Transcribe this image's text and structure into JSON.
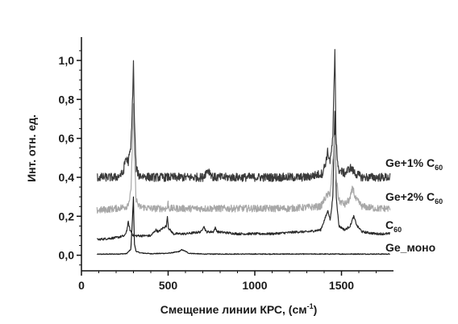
{
  "chart_data": {
    "type": "line",
    "title": "",
    "xlabel": "Смещение линии КРС, (см",
    "xlabel_sup": "-1",
    "xlabel_tail": ")",
    "ylabel": "Инт. отн. ед.",
    "xlim": [
      0,
      1800
    ],
    "ylim": [
      -0.08,
      1.12
    ],
    "x_ticks": [
      0,
      500,
      1000,
      1500
    ],
    "x_tick_labels": [
      "0",
      "500",
      "1000",
      "1500"
    ],
    "y_ticks": [
      0.0,
      0.2,
      0.4,
      0.6,
      0.8,
      1.0
    ],
    "y_tick_labels": [
      "0,0",
      "0,2",
      "0,4",
      "0,6",
      "0,8",
      "1,0"
    ],
    "grid": false,
    "legend": "inline-right",
    "series": [
      {
        "name": "Ge_моно",
        "label_main": "Ge_моно",
        "label_sub": "",
        "color": "#1a1a1a",
        "noise": 0.002,
        "x": [
          90,
          200,
          260,
          285,
          295,
          300,
          305,
          315,
          340,
          400,
          500,
          560,
          580,
          600,
          620,
          700,
          900,
          1200,
          1500,
          1780
        ],
        "y": [
          0.005,
          0.006,
          0.008,
          0.03,
          0.2,
          0.3,
          0.06,
          0.02,
          0.012,
          0.008,
          0.01,
          0.018,
          0.028,
          0.02,
          0.01,
          0.006,
          0.006,
          0.006,
          0.006,
          0.006
        ]
      },
      {
        "name": "C60",
        "label_main": "C",
        "label_sub": "60",
        "color": "#2a2a2a",
        "noise": 0.006,
        "x": [
          90,
          200,
          250,
          262,
          270,
          280,
          300,
          320,
          400,
          430,
          445,
          470,
          490,
          496,
          502,
          530,
          600,
          690,
          705,
          720,
          760,
          772,
          785,
          900,
          1100,
          1250,
          1300,
          1380,
          1410,
          1422,
          1435,
          1450,
          1462,
          1470,
          1485,
          1520,
          1550,
          1570,
          1590,
          1620,
          1700,
          1780
        ],
        "y": [
          0.08,
          0.09,
          0.1,
          0.13,
          0.17,
          0.13,
          0.1,
          0.1,
          0.1,
          0.13,
          0.12,
          0.14,
          0.15,
          0.2,
          0.14,
          0.11,
          0.11,
          0.12,
          0.15,
          0.12,
          0.12,
          0.14,
          0.12,
          0.11,
          0.11,
          0.12,
          0.12,
          0.13,
          0.2,
          0.23,
          0.18,
          0.3,
          0.74,
          0.3,
          0.15,
          0.13,
          0.15,
          0.2,
          0.15,
          0.12,
          0.11,
          0.11
        ]
      },
      {
        "name": "Ge+2% C60",
        "label_main": "Ge+2% C",
        "label_sub": "60",
        "color": "#a8a8a8",
        "noise": 0.018,
        "x": [
          90,
          200,
          260,
          275,
          285,
          295,
          300,
          305,
          315,
          330,
          400,
          495,
          500,
          505,
          600,
          900,
          1200,
          1380,
          1410,
          1435,
          1450,
          1462,
          1470,
          1485,
          1520,
          1550,
          1565,
          1580,
          1620,
          1700,
          1780
        ],
        "y": [
          0.23,
          0.24,
          0.25,
          0.28,
          0.32,
          0.6,
          0.77,
          0.52,
          0.29,
          0.25,
          0.24,
          0.24,
          0.27,
          0.24,
          0.24,
          0.24,
          0.24,
          0.25,
          0.3,
          0.32,
          0.48,
          0.62,
          0.4,
          0.28,
          0.26,
          0.29,
          0.35,
          0.29,
          0.25,
          0.24,
          0.24
        ]
      },
      {
        "name": "Ge+1% C60",
        "label_main": "Ge+1% C",
        "label_sub": "60",
        "color": "#3a3a3a",
        "noise": 0.022,
        "x": [
          90,
          200,
          240,
          255,
          270,
          285,
          295,
          300,
          305,
          315,
          330,
          400,
          700,
          730,
          760,
          1000,
          1300,
          1390,
          1410,
          1420,
          1435,
          1450,
          1462,
          1468,
          1480,
          1520,
          1550,
          1580,
          1620,
          1700,
          1780
        ],
        "y": [
          0.4,
          0.4,
          0.42,
          0.5,
          0.48,
          0.55,
          0.8,
          1.0,
          0.7,
          0.45,
          0.41,
          0.4,
          0.4,
          0.44,
          0.4,
          0.4,
          0.4,
          0.42,
          0.48,
          0.53,
          0.48,
          0.6,
          1.06,
          0.62,
          0.44,
          0.42,
          0.45,
          0.42,
          0.4,
          0.4,
          0.4
        ]
      }
    ],
    "label_y": [
      0.475,
      0.3,
      0.155,
      0.04
    ]
  }
}
